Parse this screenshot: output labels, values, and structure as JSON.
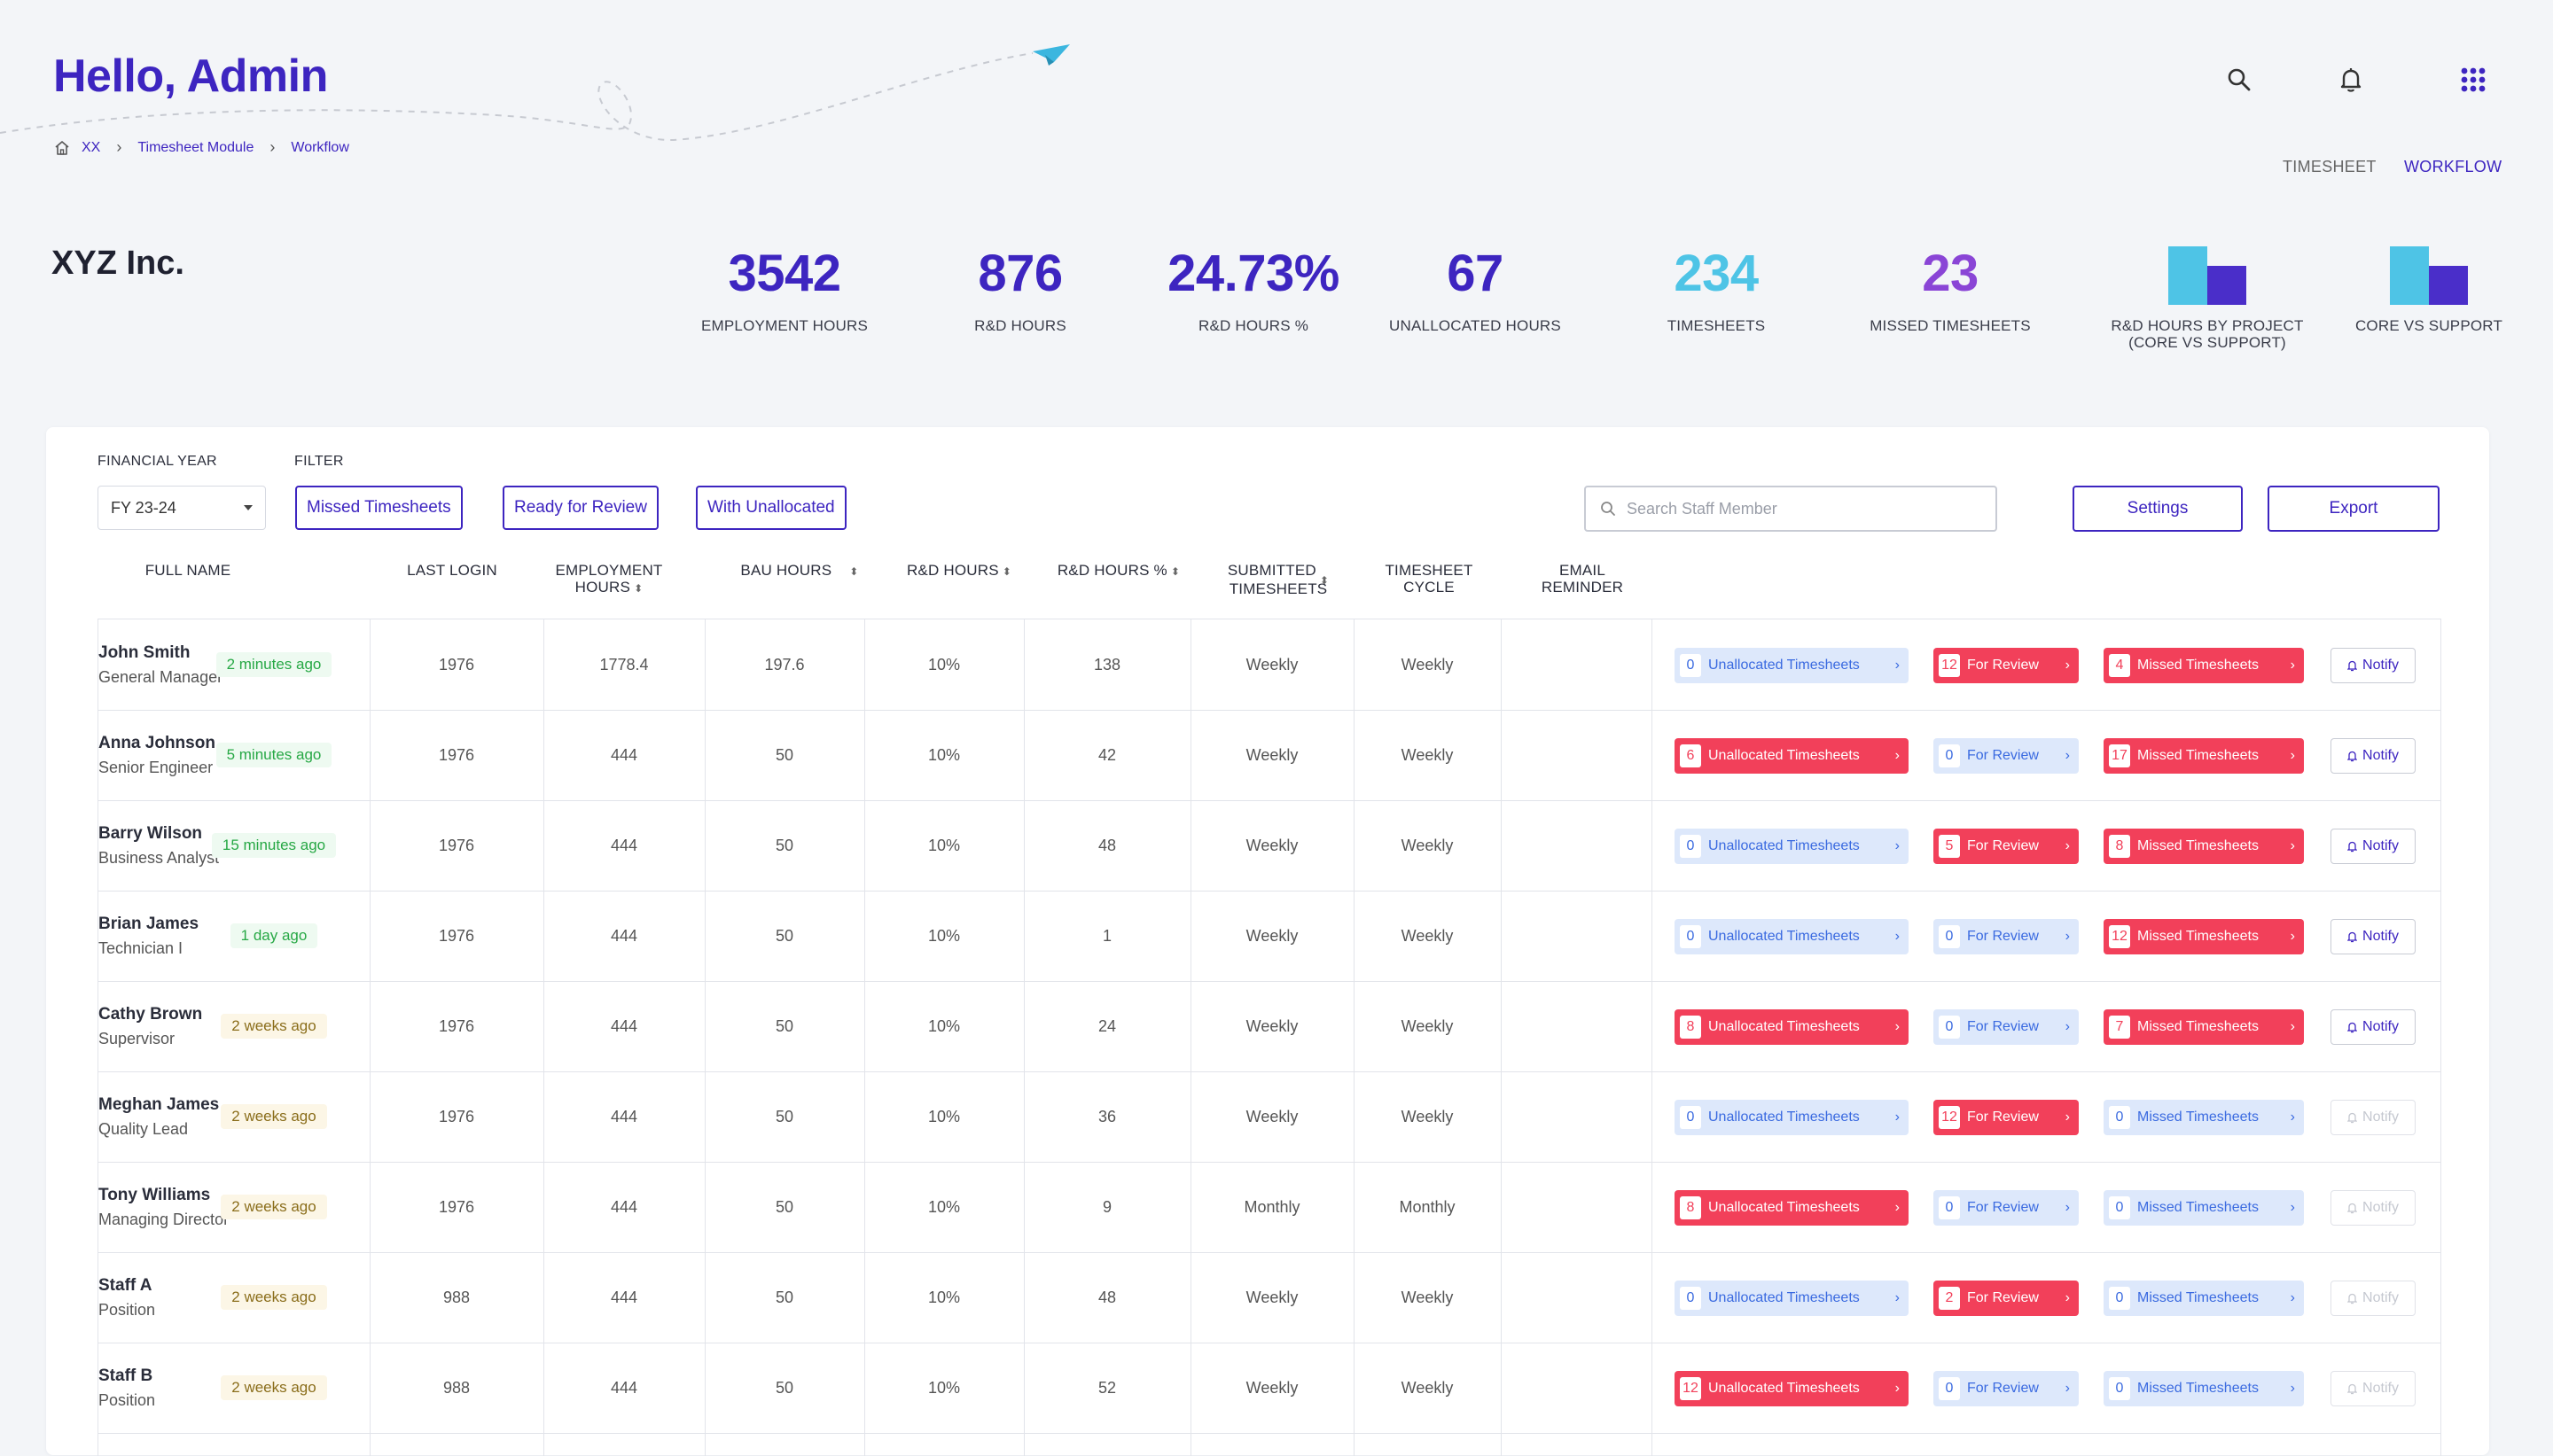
{
  "header": {
    "greeting": "Hello, Admin",
    "breadcrumb": [
      "XX",
      "Timesheet Module",
      "Workflow"
    ],
    "icons": [
      "search-icon",
      "bell-icon",
      "apps-grid-icon"
    ],
    "nav": [
      {
        "label": "TIMESHEET",
        "active": false
      },
      {
        "label": "WORKFLOW",
        "active": true
      }
    ]
  },
  "company": "XYZ Inc.",
  "kpis": [
    {
      "value": "3542",
      "label": "EMPLOYMENT HOURS",
      "color": "#3d25c0"
    },
    {
      "value": "876",
      "label": "R&D HOURS",
      "color": "#3d25c0"
    },
    {
      "value": "24.73%",
      "label": "R&D HOURS %",
      "color": "#3d25c0"
    },
    {
      "value": "67",
      "label": "UNALLOCATED HOURS",
      "color": "#3d25c0"
    },
    {
      "value": "234",
      "label": "TIMESHEETS",
      "color": "#4ec4e6"
    },
    {
      "value": "23",
      "label": "MISSED TIMESHEETS",
      "color": "#8a45d6"
    }
  ],
  "mini_charts": [
    {
      "label": "R&D HOURS  BY PROJECT (CORE VS SUPPORT)"
    },
    {
      "label": "CORE VS SUPPORT"
    }
  ],
  "colors": {
    "accent": "#3d25c0",
    "cyan": "#4ec4e6",
    "purple": "#8a45d6",
    "alert": "#f2405a",
    "info": "#3a6ae0"
  },
  "filters": {
    "financial_year_label": "FINANCIAL YEAR",
    "financial_year_value": "FY 23-24",
    "filter_label": "FILTER",
    "chips": [
      "Missed Timesheets",
      "Ready for Review",
      "With Unallocated"
    ],
    "search_placeholder": "Search Staff Member",
    "settings_label": "Settings",
    "export_label": "Export"
  },
  "table": {
    "headers": {
      "full_name": "FULL NAME",
      "last_login": "LAST LOGIN",
      "employment_hours_1": "EMPLOYMENT",
      "employment_hours_2": "HOURS",
      "bau_hours": "BAU HOURS",
      "rd_hours": "R&D HOURS",
      "rd_hours_pct": "R&D HOURS %",
      "submitted_1": "SUBMITTED",
      "submitted_2": "TIMESHEETS",
      "cycle_1": "TIMESHEET",
      "cycle_2": "CYCLE",
      "reminder_1": "EMAIL",
      "reminder_2": "REMINDER"
    },
    "labels": {
      "unallocated": "Unallocated Timesheets",
      "review": "For Review",
      "missed": "Missed Timesheets",
      "notify": "Notify"
    },
    "rows": [
      {
        "name": "John Smith",
        "position": "General Manager",
        "last_login": "2 minutes ago",
        "login_status": "green",
        "employment": "1976",
        "bau": "1778.4",
        "rd": "197.6",
        "rd_pct": "10%",
        "submitted": "138",
        "cycle": "Weekly",
        "reminder": "Weekly",
        "unallocated": "0",
        "review": "12",
        "missed": "4",
        "notify_enabled": true
      },
      {
        "name": "Anna Johnson",
        "position": "Senior Engineer",
        "last_login": "5 minutes ago",
        "login_status": "green",
        "employment": "1976",
        "bau": "444",
        "rd": "50",
        "rd_pct": "10%",
        "submitted": "42",
        "cycle": "Weekly",
        "reminder": "Weekly",
        "unallocated": "6",
        "review": "0",
        "missed": "17",
        "notify_enabled": true
      },
      {
        "name": "Barry Wilson",
        "position": "Business Analyst",
        "last_login": "15 minutes ago",
        "login_status": "green",
        "employment": "1976",
        "bau": "444",
        "rd": "50",
        "rd_pct": "10%",
        "submitted": "48",
        "cycle": "Weekly",
        "reminder": "Weekly",
        "unallocated": "0",
        "review": "5",
        "missed": "8",
        "notify_enabled": true
      },
      {
        "name": "Brian James",
        "position": "Technician I",
        "last_login": "1 day ago",
        "login_status": "green",
        "employment": "1976",
        "bau": "444",
        "rd": "50",
        "rd_pct": "10%",
        "submitted": "1",
        "cycle": "Weekly",
        "reminder": "Weekly",
        "unallocated": "0",
        "review": "0",
        "missed": "12",
        "notify_enabled": true
      },
      {
        "name": "Cathy Brown",
        "position": "Supervisor",
        "last_login": "2 weeks ago",
        "login_status": "amber",
        "employment": "1976",
        "bau": "444",
        "rd": "50",
        "rd_pct": "10%",
        "submitted": "24",
        "cycle": "Weekly",
        "reminder": "Weekly",
        "unallocated": "8",
        "review": "0",
        "missed": "7",
        "notify_enabled": true
      },
      {
        "name": "Meghan James",
        "position": "Quality Lead",
        "last_login": "2 weeks ago",
        "login_status": "amber",
        "employment": "1976",
        "bau": "444",
        "rd": "50",
        "rd_pct": "10%",
        "submitted": "36",
        "cycle": "Weekly",
        "reminder": "Weekly",
        "unallocated": "0",
        "review": "12",
        "missed": "0",
        "notify_enabled": false
      },
      {
        "name": "Tony Williams",
        "position": "Managing Director",
        "last_login": "2 weeks ago",
        "login_status": "amber",
        "employment": "1976",
        "bau": "444",
        "rd": "50",
        "rd_pct": "10%",
        "submitted": "9",
        "cycle": "Monthly",
        "reminder": "Monthly",
        "unallocated": "8",
        "review": "0",
        "missed": "0",
        "notify_enabled": false
      },
      {
        "name": "Staff A",
        "position": "Position",
        "last_login": "2 weeks ago",
        "login_status": "amber",
        "employment": "988",
        "bau": "444",
        "rd": "50",
        "rd_pct": "10%",
        "submitted": "48",
        "cycle": "Weekly",
        "reminder": "Weekly",
        "unallocated": "0",
        "review": "2",
        "missed": "0",
        "notify_enabled": false
      },
      {
        "name": "Staff B",
        "position": "Position",
        "last_login": "2 weeks ago",
        "login_status": "amber",
        "employment": "988",
        "bau": "444",
        "rd": "50",
        "rd_pct": "10%",
        "submitted": "52",
        "cycle": "Weekly",
        "reminder": "Weekly",
        "unallocated": "12",
        "review": "0",
        "missed": "0",
        "notify_enabled": false
      }
    ]
  }
}
